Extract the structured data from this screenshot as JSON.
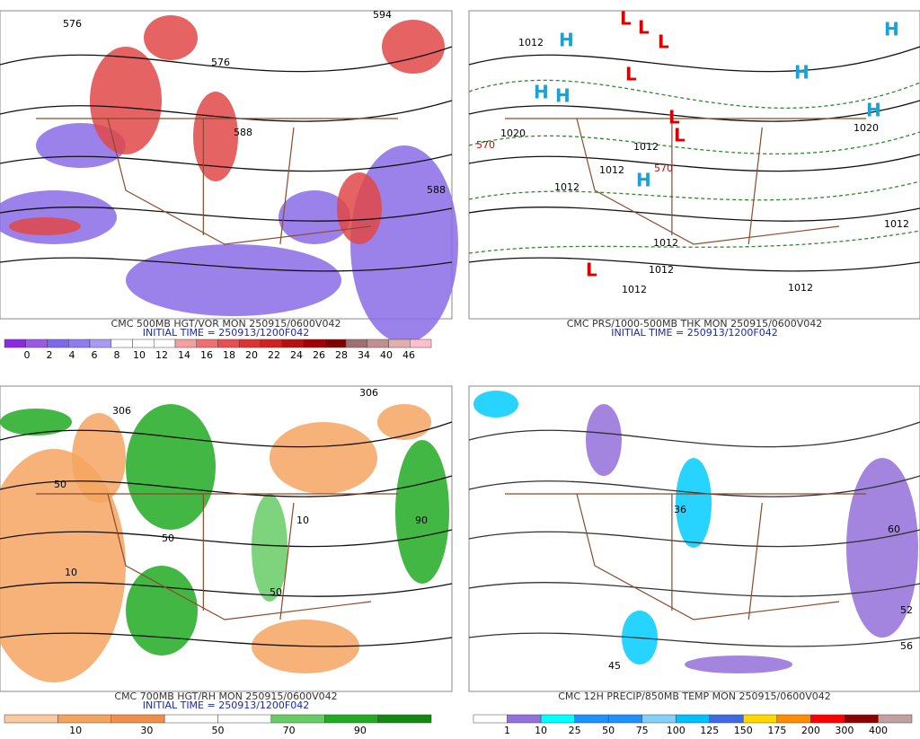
{
  "panels": [
    {
      "caption": "CMC 500MB HGT/VOR MON 250915/0600V042",
      "initial_time": "INITIAL TIME = 250913/1200F042",
      "colorbar": {
        "colors": [
          "#8a2be2",
          "#9b59e8",
          "#7b68ee",
          "#8e7cf0",
          "#a99af3",
          "#ffffff",
          "#ffffff",
          "#ffffff",
          "#f4a0a0",
          "#ee7070",
          "#e85050",
          "#e03030",
          "#d02020",
          "#b81010",
          "#a00000",
          "#800000",
          "#a07070",
          "#c09090",
          "#e0b0b0",
          "#ffc0cb"
        ],
        "labels": [
          "0",
          "2",
          "4",
          "6",
          "8",
          "10",
          "12",
          "14",
          "16",
          "18",
          "20",
          "22",
          "24",
          "26",
          "28",
          "34",
          "40",
          "46"
        ]
      },
      "contour_labels": [
        "576",
        "576",
        "588",
        "588",
        "594"
      ]
    },
    {
      "caption": "CMC PRS/1000-500MB THK MON 250915/0600V042",
      "initial_time": "INITIAL TIME = 250913/1200F042",
      "contour_labels": [
        "1012",
        "1020",
        "1012",
        "1012",
        "1012",
        "1012",
        "1012",
        "1012",
        "1012",
        "1020",
        "1012",
        "570",
        "570",
        "H",
        "H",
        "H",
        "H",
        "H",
        "H",
        "H",
        "L",
        "L",
        "L",
        "L",
        "L",
        "L",
        "L"
      ]
    },
    {
      "caption": "CMC 700MB HGT/RH MON 250915/0600V042",
      "initial_time": "INITIAL TIME = 250913/1200F042",
      "colorbar": {
        "colors": [
          "#f9c9a0",
          "#f4a460",
          "#ee8f4a",
          "#ffffff",
          "#ffffff",
          "#66cc66",
          "#22aa22",
          "#118811"
        ],
        "labels": [
          "10",
          "30",
          "50",
          "70",
          "90"
        ]
      },
      "contour_labels": [
        "10",
        "10",
        "50",
        "50",
        "50",
        "90",
        "306",
        "306"
      ]
    },
    {
      "caption": "CMC 12H PRECIP/850MB TEMP MON 250915/0600V042",
      "colorbar": {
        "colors": [
          "#ffffff",
          "#9370db",
          "#00ffff",
          "#1e90ff",
          "#1e90ff",
          "#87cefa",
          "#00bfff",
          "#4169e1",
          "#ffd700",
          "#ff8c00",
          "#ff0000",
          "#8b0000",
          "#c0a0a0"
        ],
        "labels": [
          "1",
          "10",
          "25",
          "50",
          "75",
          "100",
          "125",
          "150",
          "175",
          "200",
          "300",
          "400"
        ]
      },
      "contour_labels": [
        "45",
        "52",
        "56",
        "60",
        "36"
      ]
    }
  ]
}
